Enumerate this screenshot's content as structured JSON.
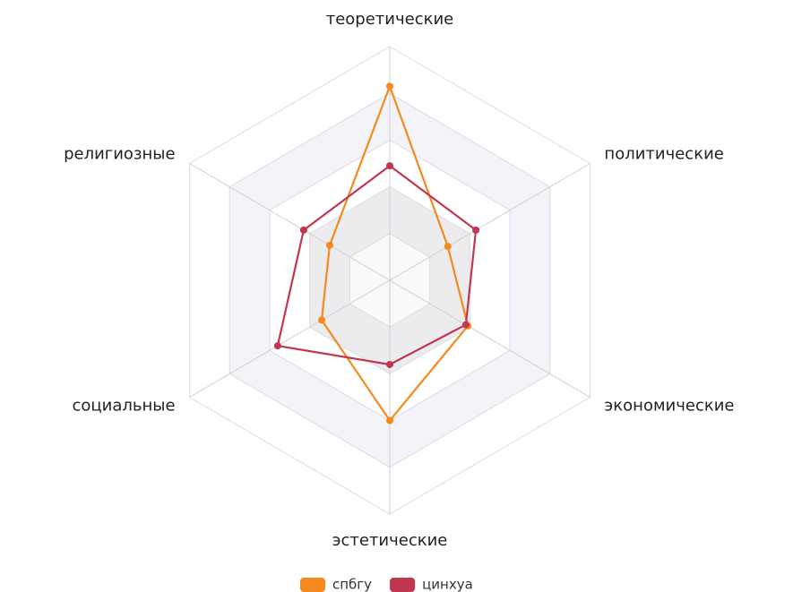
{
  "chart_data": {
    "type": "radar",
    "indicators": [
      "теоретические",
      "политические",
      "экономические",
      "эстетические",
      "социальные",
      "религиозные"
    ],
    "rlim": [
      0,
      100
    ],
    "series": [
      {
        "name": "спбгу",
        "color": "#f5891e",
        "values": [
          83,
          29,
          39,
          60,
          34,
          30
        ]
      },
      {
        "name": "цинхуа",
        "color": "#c23650",
        "values": [
          49,
          43,
          38,
          36,
          56,
          43
        ]
      }
    ],
    "legend": "bottom"
  }
}
